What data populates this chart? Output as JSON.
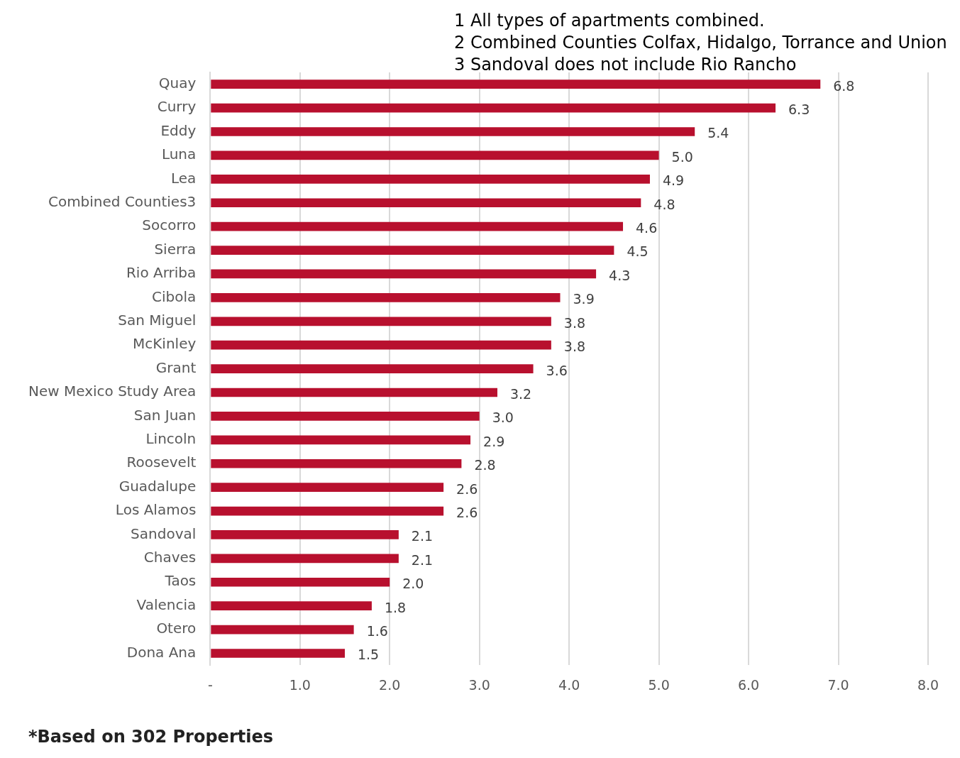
{
  "chart_data": {
    "type": "bar",
    "orientation": "horizontal",
    "categories": [
      "Quay",
      "Curry",
      "Eddy",
      "Luna",
      "Lea",
      "Combined Counties3",
      "Socorro",
      "Sierra",
      "Rio Arriba",
      "Cibola",
      "San Miguel",
      "McKinley",
      "Grant",
      "New Mexico Study Area",
      "San Juan",
      "Lincoln",
      "Roosevelt",
      "Guadalupe",
      "Los Alamos",
      "Sandoval",
      "Chaves",
      "Taos",
      "Valencia",
      "Otero",
      "Dona Ana"
    ],
    "values": [
      6.8,
      6.3,
      5.4,
      5.0,
      4.9,
      4.8,
      4.6,
      4.5,
      4.3,
      3.9,
      3.8,
      3.8,
      3.6,
      3.2,
      3.0,
      2.9,
      2.8,
      2.6,
      2.6,
      2.1,
      2.1,
      2.0,
      1.8,
      1.6,
      1.5
    ],
    "value_labels": [
      "6.8",
      "6.3",
      "5.4",
      "5.0",
      "4.9",
      "4.8",
      "4.6",
      "4.5",
      "4.3",
      "3.9",
      "3.8",
      "3.8",
      "3.6",
      "3.2",
      "3.0",
      "2.9",
      "2.8",
      "2.6",
      "2.6",
      "2.1",
      "2.1",
      "2.0",
      "1.8",
      "1.6",
      "1.5"
    ],
    "color": "#b8102e",
    "xlim": [
      0,
      8
    ],
    "xticks": [
      {
        "value": 0,
        "label": "-"
      },
      {
        "value": 1,
        "label": "1.0"
      },
      {
        "value": 2,
        "label": "2.0"
      },
      {
        "value": 3,
        "label": "3.0"
      },
      {
        "value": 4,
        "label": "4.0"
      },
      {
        "value": 5,
        "label": "5.0"
      },
      {
        "value": 6,
        "label": "6.0"
      },
      {
        "value": 7,
        "label": "7.0"
      },
      {
        "value": 8,
        "label": "8.0"
      }
    ],
    "grid": "x",
    "annotations": [
      "1 All types of apartments combined.",
      "2 Combined Counties Colfax, Hidalgo, Torrance and Union",
      "3 Sandoval does not include Rio Rancho",
      "*Based on 302 Properties"
    ]
  }
}
